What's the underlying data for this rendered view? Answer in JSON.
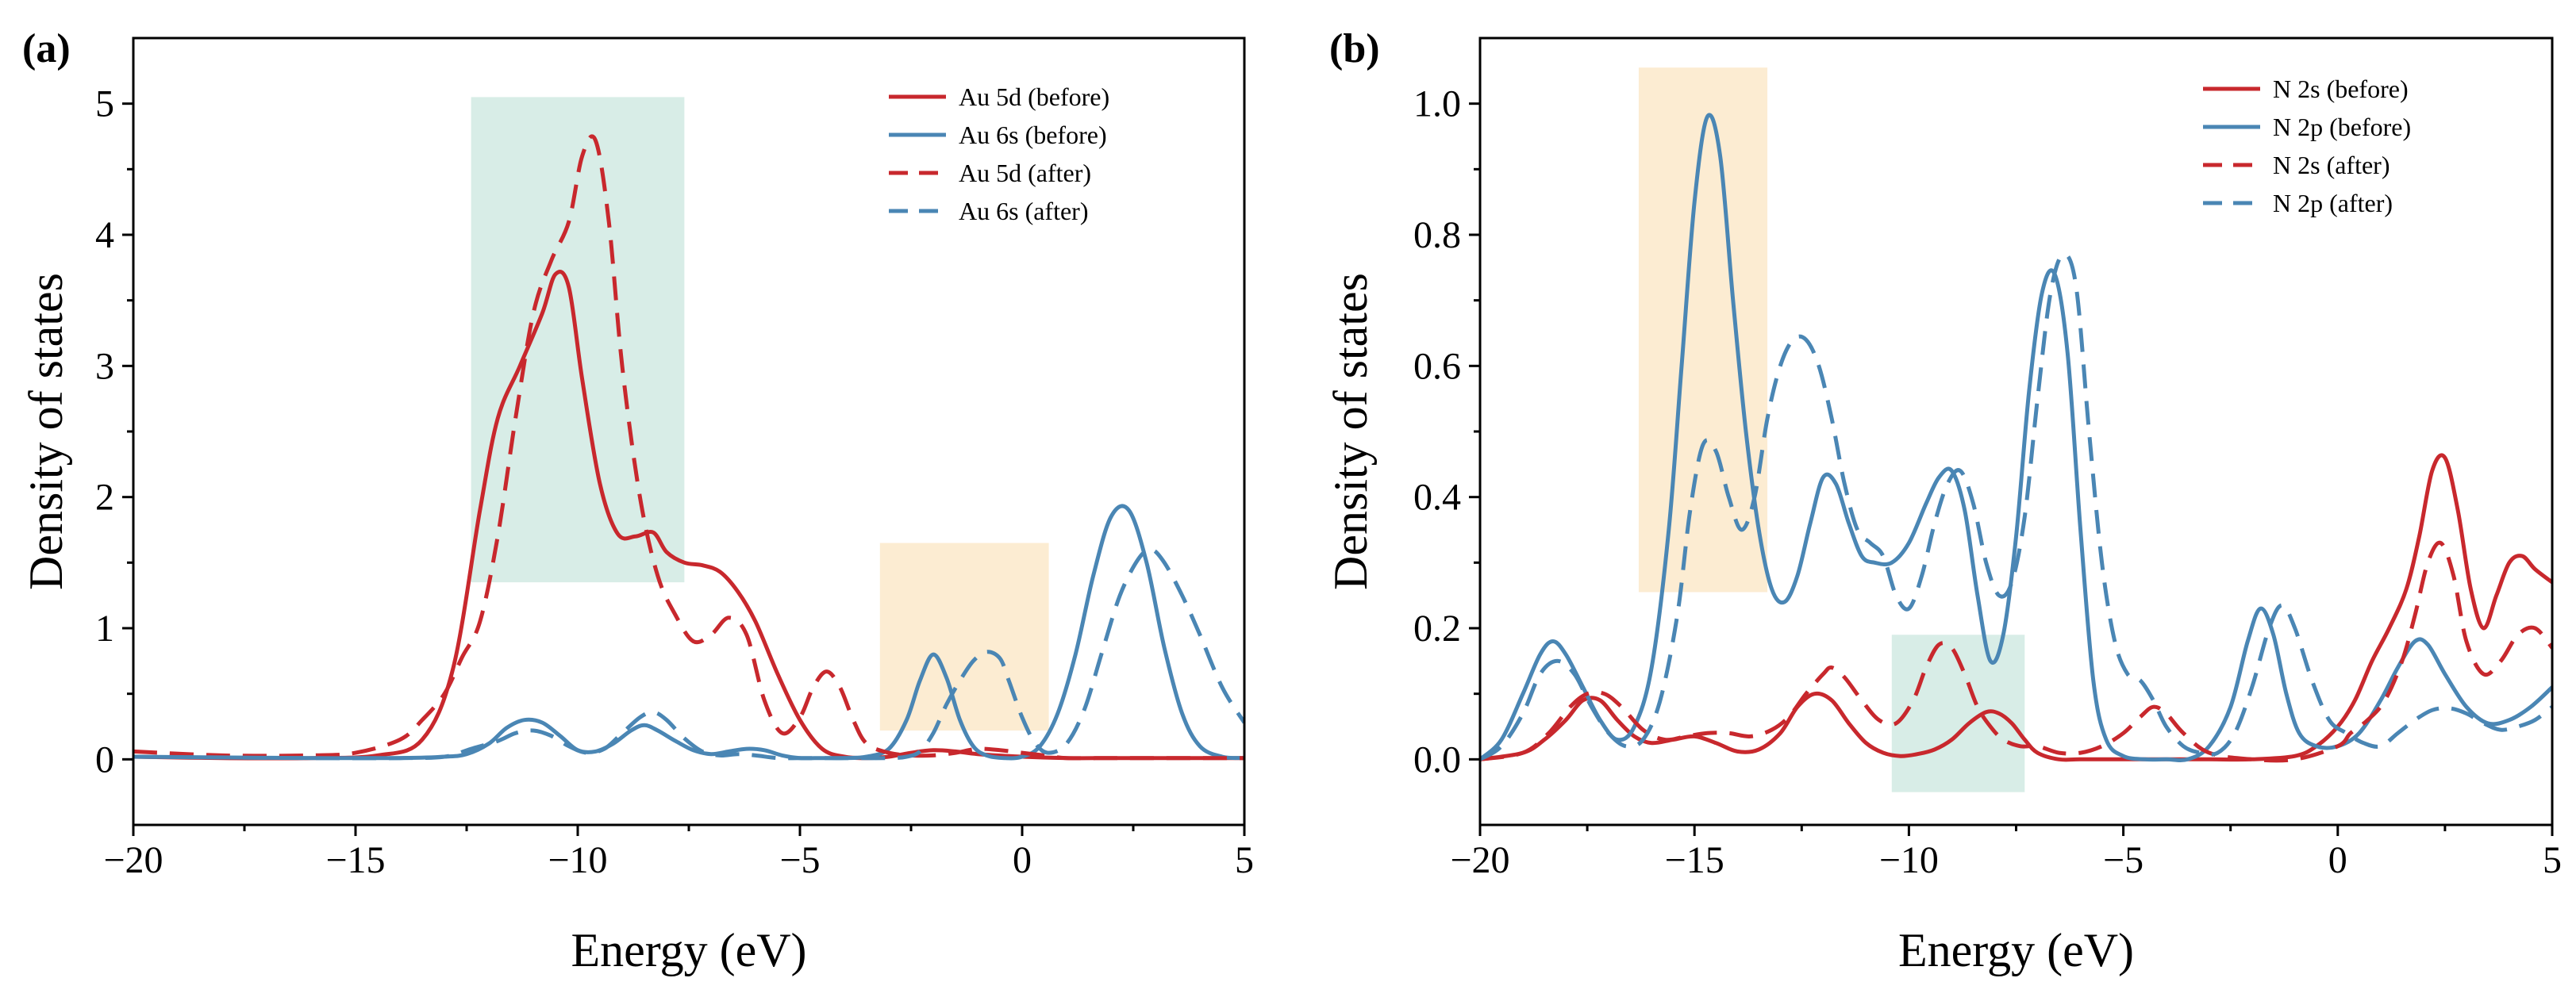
{
  "chart_data": [
    {
      "type": "line",
      "panel_label": "(a)",
      "xlabel": "Energy (eV)",
      "ylabel": "Density of states",
      "xlim": [
        -20,
        5
      ],
      "ylim": [
        -0.5,
        5.5
      ],
      "xticks": [
        -20,
        -15,
        -10,
        -5,
        0,
        5
      ],
      "xtick_labels": [
        "−20",
        "−15",
        "−10",
        "−5",
        "0",
        "5"
      ],
      "yticks": [
        0,
        1,
        2,
        3,
        4,
        5
      ],
      "ytick_labels": [
        "0",
        "1",
        "2",
        "3",
        "4",
        "5"
      ],
      "grid": false,
      "legend_position": "top-right",
      "highlights": [
        {
          "color": "#8fcbbb",
          "x": [
            -12.4,
            -7.6
          ],
          "y": [
            1.35,
            5.05
          ]
        },
        {
          "color": "#f5c97d",
          "x": [
            -3.2,
            0.6
          ],
          "y": [
            0.22,
            1.65
          ]
        }
      ],
      "series": [
        {
          "name": "Au 5d (before)",
          "color": "#c8282d",
          "style": "solid",
          "x": [
            -20,
            -18,
            -16,
            -14.5,
            -13.5,
            -12.8,
            -12.2,
            -11.8,
            -11.3,
            -10.8,
            -10.5,
            -10.2,
            -9.9,
            -9.5,
            -9.1,
            -8.7,
            -8.3,
            -8.0,
            -7.6,
            -7.2,
            -6.8,
            -6.4,
            -6.0,
            -5.5,
            -5.0,
            -4.5,
            -4.0,
            -3.5,
            -3.0,
            -2.5,
            -2.0,
            -1.5,
            -1.0,
            0,
            1,
            2,
            3,
            4,
            5
          ],
          "values": [
            0.02,
            0.01,
            0.01,
            0.03,
            0.15,
            0.7,
            1.9,
            2.6,
            3.0,
            3.4,
            3.7,
            3.6,
            2.9,
            2.1,
            1.72,
            1.7,
            1.73,
            1.58,
            1.5,
            1.48,
            1.43,
            1.28,
            1.05,
            0.65,
            0.3,
            0.08,
            0.02,
            0.01,
            0.02,
            0.05,
            0.07,
            0.06,
            0.04,
            0.02,
            0.01,
            0.01,
            0.01,
            0.01,
            0.01
          ]
        },
        {
          "name": "Au 6s (before)",
          "color": "#4a86b4",
          "style": "solid",
          "x": [
            -20,
            -16,
            -14,
            -13,
            -12.5,
            -12,
            -11.6,
            -11.2,
            -10.8,
            -10.4,
            -10.0,
            -9.6,
            -9.2,
            -8.8,
            -8.5,
            -8.2,
            -7.8,
            -7.4,
            -7.0,
            -6.6,
            -6.2,
            -5.8,
            -5.4,
            -5.0,
            -4.5,
            -4.0,
            -3.5,
            -3.0,
            -2.6,
            -2.3,
            -2.0,
            -1.7,
            -1.4,
            -1.1,
            -0.8,
            -0.4,
            0,
            0.4,
            0.8,
            1.2,
            1.6,
            2.0,
            2.4,
            2.8,
            3.2,
            3.6,
            4.0,
            4.5,
            5.0
          ],
          "values": [
            0.02,
            0.01,
            0.01,
            0.02,
            0.04,
            0.12,
            0.24,
            0.3,
            0.28,
            0.18,
            0.07,
            0.06,
            0.12,
            0.22,
            0.26,
            0.22,
            0.14,
            0.07,
            0.04,
            0.06,
            0.08,
            0.07,
            0.03,
            0.01,
            0.01,
            0.01,
            0.02,
            0.08,
            0.3,
            0.6,
            0.8,
            0.62,
            0.3,
            0.1,
            0.03,
            0.01,
            0.02,
            0.1,
            0.35,
            0.8,
            1.4,
            1.85,
            1.9,
            1.5,
            0.85,
            0.35,
            0.1,
            0.02,
            0.01
          ]
        },
        {
          "name": "Au 5d (after)",
          "color": "#c8282d",
          "style": "dashed",
          "x": [
            -20,
            -18,
            -16,
            -15,
            -14,
            -13.5,
            -13.0,
            -12.6,
            -12.2,
            -11.8,
            -11.4,
            -11.0,
            -10.6,
            -10.2,
            -9.9,
            -9.6,
            -9.3,
            -9.0,
            -8.6,
            -8.2,
            -7.8,
            -7.4,
            -7.0,
            -6.6,
            -6.2,
            -5.8,
            -5.4,
            -5.0,
            -4.7,
            -4.4,
            -4.1,
            -3.8,
            -3.5,
            -3.0,
            -2.5,
            -2.0,
            -1.5,
            -1.0,
            -0.5,
            0,
            0.5,
            1.0,
            2,
            3,
            5
          ],
          "values": [
            0.06,
            0.03,
            0.03,
            0.05,
            0.15,
            0.3,
            0.5,
            0.78,
            1.05,
            1.7,
            2.6,
            3.4,
            3.8,
            4.1,
            4.6,
            4.72,
            4.1,
            3.0,
            2.0,
            1.4,
            1.1,
            0.9,
            0.95,
            1.08,
            0.95,
            0.45,
            0.2,
            0.32,
            0.55,
            0.67,
            0.55,
            0.3,
            0.12,
            0.05,
            0.03,
            0.03,
            0.05,
            0.08,
            0.07,
            0.05,
            0.03,
            0.01,
            0.01,
            0.01,
            0.01
          ]
        },
        {
          "name": "Au 6s (after)",
          "color": "#4a86b4",
          "style": "dashed",
          "x": [
            -20,
            -16,
            -14,
            -13,
            -12.4,
            -11.8,
            -11.4,
            -11.0,
            -10.6,
            -10.2,
            -9.8,
            -9.4,
            -9.0,
            -8.6,
            -8.3,
            -8.0,
            -7.6,
            -7.2,
            -6.8,
            -6.4,
            -6.0,
            -5.5,
            -5.0,
            -4.0,
            -3.0,
            -2.6,
            -2.3,
            -2.0,
            -1.7,
            -1.4,
            -1.1,
            -0.8,
            -0.5,
            -0.3,
            0,
            0.3,
            0.6,
            1.0,
            1.4,
            1.8,
            2.2,
            2.6,
            2.9,
            3.2,
            3.6,
            4.0,
            4.5,
            5.0
          ],
          "values": [
            0.02,
            0.01,
            0.01,
            0.02,
            0.08,
            0.14,
            0.2,
            0.22,
            0.18,
            0.1,
            0.05,
            0.08,
            0.2,
            0.32,
            0.36,
            0.3,
            0.16,
            0.06,
            0.03,
            0.04,
            0.03,
            0.01,
            0.01,
            0.01,
            0.01,
            0.02,
            0.06,
            0.2,
            0.42,
            0.6,
            0.75,
            0.82,
            0.77,
            0.6,
            0.32,
            0.12,
            0.05,
            0.12,
            0.38,
            0.82,
            1.25,
            1.52,
            1.6,
            1.5,
            1.25,
            0.95,
            0.55,
            0.28
          ]
        }
      ]
    },
    {
      "type": "line",
      "panel_label": "(b)",
      "xlabel": "Energy (eV)",
      "ylabel": "Density of states",
      "xlim": [
        -20,
        5
      ],
      "ylim": [
        -0.1,
        1.1
      ],
      "xticks": [
        -20,
        -15,
        -10,
        -5,
        0,
        5
      ],
      "xtick_labels": [
        "−20",
        "−15",
        "−10",
        "−5",
        "0",
        "5"
      ],
      "yticks": [
        0.0,
        0.2,
        0.4,
        0.6,
        0.8,
        1.0
      ],
      "ytick_labels": [
        "0.0",
        "0.2",
        "0.4",
        "0.6",
        "0.8",
        "1.0"
      ],
      "grid": false,
      "legend_position": "top-right",
      "highlights": [
        {
          "color": "#f5c97d",
          "x": [
            -16.3,
            -13.3
          ],
          "y": [
            0.255,
            1.055
          ]
        },
        {
          "color": "#8fcbbb",
          "x": [
            -10.4,
            -7.3
          ],
          "y": [
            -0.05,
            0.19
          ]
        }
      ],
      "series": [
        {
          "name": "N 2s (before)",
          "color": "#c8282d",
          "style": "solid",
          "x": [
            -20,
            -19,
            -18.5,
            -18.0,
            -17.6,
            -17.2,
            -16.8,
            -16.4,
            -16.0,
            -15.5,
            -15.0,
            -14.5,
            -14.0,
            -13.5,
            -13.0,
            -12.6,
            -12.2,
            -11.8,
            -11.4,
            -11.0,
            -10.6,
            -10.2,
            -9.8,
            -9.4,
            -9.0,
            -8.6,
            -8.2,
            -7.9,
            -7.6,
            -7.3,
            -7.0,
            -6.5,
            -6.0,
            -5.0,
            -4.0,
            -3.0,
            -2.0,
            -1.0,
            -0.5,
            0.0,
            0.4,
            0.8,
            1.2,
            1.6,
            1.9,
            2.2,
            2.5,
            2.8,
            3.1,
            3.4,
            3.7,
            4.0,
            4.3,
            4.6,
            5.0
          ],
          "values": [
            0.0,
            0.01,
            0.03,
            0.06,
            0.09,
            0.09,
            0.06,
            0.035,
            0.025,
            0.03,
            0.035,
            0.025,
            0.012,
            0.015,
            0.04,
            0.08,
            0.1,
            0.09,
            0.055,
            0.025,
            0.01,
            0.005,
            0.008,
            0.015,
            0.03,
            0.055,
            0.072,
            0.07,
            0.055,
            0.03,
            0.01,
            0.0,
            0.0,
            0.0,
            0.0,
            0.0,
            0.0,
            0.005,
            0.02,
            0.05,
            0.09,
            0.15,
            0.2,
            0.26,
            0.34,
            0.44,
            0.46,
            0.38,
            0.26,
            0.2,
            0.25,
            0.3,
            0.31,
            0.29,
            0.27
          ]
        },
        {
          "name": "N 2p (before)",
          "color": "#4a86b4",
          "style": "solid",
          "x": [
            -20,
            -19.5,
            -19.0,
            -18.6,
            -18.3,
            -18.0,
            -17.6,
            -17.2,
            -16.8,
            -16.4,
            -16.0,
            -15.6,
            -15.3,
            -15.0,
            -14.7,
            -14.4,
            -14.1,
            -13.8,
            -13.5,
            -13.2,
            -12.9,
            -12.6,
            -12.3,
            -12.0,
            -11.7,
            -11.4,
            -11.1,
            -10.8,
            -10.4,
            -10.0,
            -9.6,
            -9.3,
            -9.0,
            -8.7,
            -8.4,
            -8.1,
            -7.8,
            -7.5,
            -7.2,
            -6.9,
            -6.6,
            -6.3,
            -6.0,
            -5.7,
            -5.4,
            -5.0,
            -4.5,
            -4.0,
            -3.5,
            -3.0,
            -2.5,
            -2.1,
            -1.8,
            -1.5,
            -1.2,
            -0.9,
            -0.5,
            0.0,
            0.5,
            1.0,
            1.4,
            1.8,
            2.1,
            2.5,
            3.0,
            3.5,
            4.0,
            4.5,
            5.0
          ],
          "values": [
            0.0,
            0.03,
            0.1,
            0.16,
            0.18,
            0.16,
            0.11,
            0.06,
            0.03,
            0.05,
            0.14,
            0.35,
            0.6,
            0.85,
            0.98,
            0.92,
            0.7,
            0.5,
            0.35,
            0.26,
            0.24,
            0.28,
            0.36,
            0.43,
            0.42,
            0.36,
            0.31,
            0.3,
            0.3,
            0.33,
            0.39,
            0.43,
            0.44,
            0.38,
            0.25,
            0.15,
            0.19,
            0.34,
            0.56,
            0.71,
            0.74,
            0.62,
            0.35,
            0.12,
            0.03,
            0.005,
            0.0,
            0.0,
            0.0,
            0.02,
            0.08,
            0.18,
            0.23,
            0.19,
            0.1,
            0.04,
            0.02,
            0.02,
            0.04,
            0.09,
            0.14,
            0.18,
            0.175,
            0.13,
            0.08,
            0.055,
            0.06,
            0.08,
            0.11
          ]
        },
        {
          "name": "N 2s (after)",
          "color": "#c8282d",
          "style": "dashed",
          "x": [
            -20,
            -19,
            -18.4,
            -17.9,
            -17.5,
            -17.1,
            -16.7,
            -16.2,
            -15.7,
            -15.2,
            -14.7,
            -14.2,
            -13.7,
            -13.2,
            -12.8,
            -12.4,
            -12.0,
            -11.8,
            -11.5,
            -11.1,
            -10.7,
            -10.3,
            -9.9,
            -9.6,
            -9.3,
            -9.0,
            -8.7,
            -8.4,
            -8.1,
            -7.8,
            -7.4,
            -7.0,
            -6.5,
            -6.0,
            -5.5,
            -5.0,
            -4.6,
            -4.3,
            -4.0,
            -3.6,
            -3.0,
            -2.0,
            -1.0,
            0.0,
            0.3,
            0.7,
            1.1,
            1.5,
            1.8,
            2.1,
            2.4,
            2.7,
            3.0,
            3.4,
            3.8,
            4.2,
            4.6,
            5.0
          ],
          "values": [
            0.0,
            0.01,
            0.04,
            0.08,
            0.1,
            0.1,
            0.08,
            0.045,
            0.03,
            0.035,
            0.04,
            0.04,
            0.035,
            0.045,
            0.065,
            0.1,
            0.13,
            0.14,
            0.125,
            0.09,
            0.06,
            0.055,
            0.09,
            0.14,
            0.175,
            0.17,
            0.13,
            0.08,
            0.05,
            0.03,
            0.02,
            0.02,
            0.01,
            0.01,
            0.02,
            0.04,
            0.065,
            0.08,
            0.07,
            0.04,
            0.01,
            0.0,
            0.0,
            0.02,
            0.04,
            0.06,
            0.09,
            0.15,
            0.22,
            0.3,
            0.33,
            0.28,
            0.18,
            0.13,
            0.15,
            0.19,
            0.2,
            0.17
          ]
        },
        {
          "name": "N 2p (after)",
          "color": "#4a86b4",
          "style": "dashed",
          "x": [
            -20,
            -19.5,
            -19.0,
            -18.6,
            -18.2,
            -17.8,
            -17.4,
            -17.0,
            -16.6,
            -16.2,
            -15.8,
            -15.4,
            -15.1,
            -14.8,
            -14.5,
            -14.2,
            -13.9,
            -13.6,
            -13.3,
            -13.0,
            -12.7,
            -12.4,
            -12.1,
            -11.8,
            -11.5,
            -11.2,
            -10.9,
            -10.6,
            -10.3,
            -10.0,
            -9.7,
            -9.4,
            -9.1,
            -8.8,
            -8.5,
            -8.2,
            -7.9,
            -7.6,
            -7.3,
            -7.0,
            -6.7,
            -6.4,
            -6.1,
            -5.8,
            -5.5,
            -5.2,
            -4.9,
            -4.6,
            -4.3,
            -4.0,
            -3.6,
            -3.2,
            -2.8,
            -2.4,
            -2.0,
            -1.6,
            -1.3,
            -1.0,
            -0.6,
            -0.2,
            0.2,
            0.6,
            1.0,
            1.4,
            1.8,
            2.2,
            2.6,
            3.0,
            3.4,
            3.8,
            4.2,
            4.6,
            5.0
          ],
          "values": [
            0.0,
            0.02,
            0.07,
            0.13,
            0.15,
            0.13,
            0.08,
            0.04,
            0.02,
            0.03,
            0.09,
            0.22,
            0.38,
            0.48,
            0.47,
            0.4,
            0.35,
            0.4,
            0.52,
            0.6,
            0.64,
            0.64,
            0.6,
            0.52,
            0.42,
            0.35,
            0.33,
            0.31,
            0.25,
            0.23,
            0.28,
            0.36,
            0.42,
            0.44,
            0.39,
            0.3,
            0.25,
            0.27,
            0.37,
            0.55,
            0.71,
            0.77,
            0.72,
            0.5,
            0.3,
            0.18,
            0.13,
            0.12,
            0.09,
            0.05,
            0.02,
            0.01,
            0.01,
            0.04,
            0.11,
            0.2,
            0.235,
            0.2,
            0.12,
            0.06,
            0.04,
            0.025,
            0.02,
            0.04,
            0.06,
            0.075,
            0.078,
            0.07,
            0.055,
            0.045,
            0.05,
            0.06,
            0.08
          ]
        }
      ]
    }
  ]
}
